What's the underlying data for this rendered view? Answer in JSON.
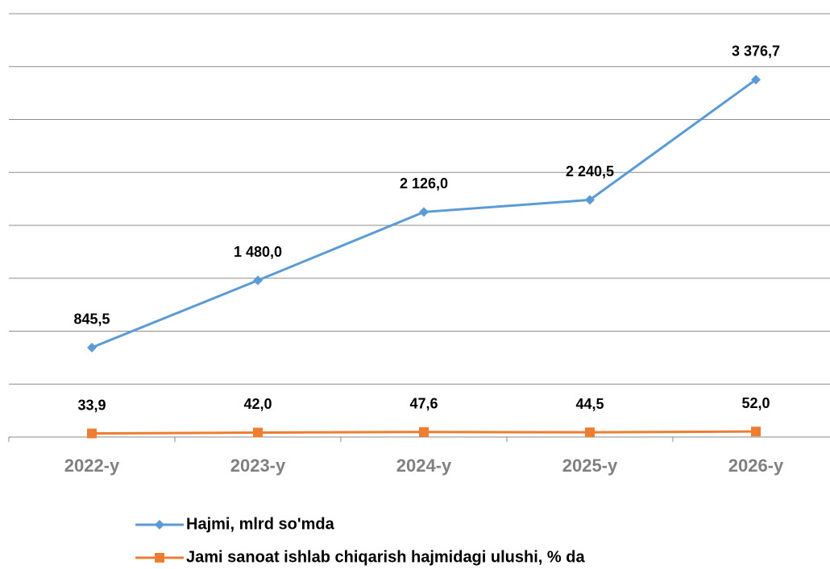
{
  "chart_data": {
    "type": "line",
    "categories": [
      "2022-y",
      "2023-y",
      "2024-y",
      "2025-y",
      "2026-y"
    ],
    "series": [
      {
        "name": "Hajmi, mlrd so'mda",
        "color": "#5b9bd5",
        "marker": "diamond",
        "values": [
          845.5,
          1480.0,
          2126.0,
          2240.5,
          3376.7
        ],
        "value_labels": [
          "845,5",
          "1 480,0",
          "2 126,0",
          "2 240,5",
          "3 376,7"
        ]
      },
      {
        "name": "Jami sanoat ishlab chiqarish hajmidagi ulushi, % da",
        "color": "#ed7d31",
        "marker": "square",
        "values": [
          33.9,
          42.0,
          47.6,
          44.5,
          52.0
        ],
        "value_labels": [
          "33,9",
          "42,0",
          "47,6",
          "44,5",
          "52,0"
        ]
      }
    ],
    "ylim": [
      0,
      4000
    ],
    "yticks": [
      0,
      500,
      1000,
      1500,
      2000,
      2500,
      3000,
      3500,
      4000
    ],
    "grid": true,
    "legend": "bottom"
  }
}
